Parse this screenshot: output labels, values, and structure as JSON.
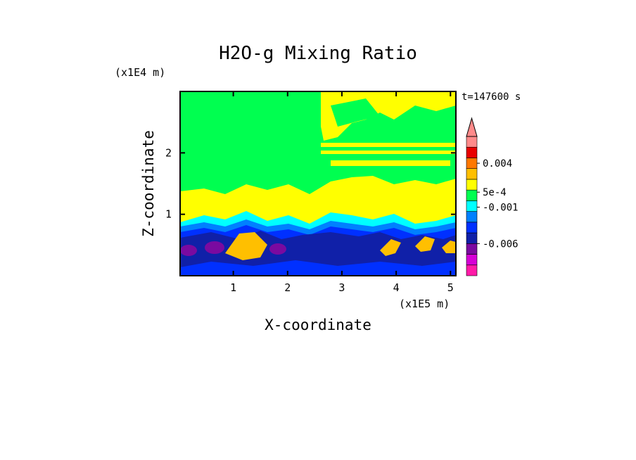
{
  "chart_data": {
    "type": "heatmap",
    "title": "H2O-g Mixing Ratio",
    "xlabel": "X-coordinate",
    "ylabel": "Z-coordinate",
    "x_unit": "(x1E5 m)",
    "y_unit": "(x1E4 m)",
    "time_label": "t=147600 s",
    "xlim": [
      0.02,
      5.1
    ],
    "ylim": [
      0,
      3.0
    ],
    "x_ticks": [
      1,
      2,
      3,
      4,
      5
    ],
    "x_tick_labels": [
      "1",
      "2",
      "3",
      "4",
      "5"
    ],
    "y_ticks": [
      1,
      2
    ],
    "y_tick_labels": [
      "1",
      "2"
    ],
    "colorbar": {
      "extend_top": true,
      "colors": [
        "#ff1aa8",
        "#d600d6",
        "#7a0aa0",
        "#1020a8",
        "#0030ff",
        "#0080ff",
        "#00ffff",
        "#00ff50",
        "#ffff00",
        "#ffbf00",
        "#ff7800",
        "#e80000",
        "#ff8a8a"
      ],
      "labels": [
        "0.004",
        "5e-4",
        "-0.001",
        "-0.006"
      ]
    },
    "field_color_keys": {
      "background": "#00ff50",
      "moist_layer": "#ffff00",
      "cyan_band": "#00ffff",
      "light_blue": "#0080ff",
      "blue": "#0030ff",
      "dark_blue": "#1020a8",
      "purple": "#7a0aa0",
      "orange": "#ffbf00"
    }
  }
}
